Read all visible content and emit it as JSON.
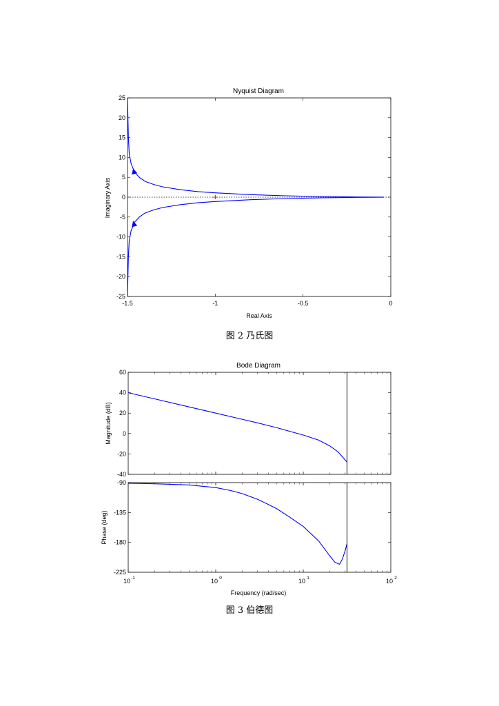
{
  "captions": {
    "fig2": "图 2 乃氏图",
    "fig3": "图 3 伯德图"
  },
  "chart_data": [
    {
      "type": "line",
      "title": "Nyquist Diagram",
      "xlabel": "Real Axis",
      "ylabel": "Imaginary Axis",
      "xlim": [
        -1.5,
        0
      ],
      "ylim": [
        -25,
        25
      ],
      "xticks": [
        "-1.5",
        "-1",
        "-0.5",
        "0"
      ],
      "yticks": [
        "25",
        "20",
        "15",
        "10",
        "5",
        "0",
        "-5",
        "-10",
        "-15",
        "-20",
        "-25"
      ],
      "grid": false,
      "critical_point": [
        -1,
        0
      ],
      "line_color": "#0000ff",
      "marker_color": "#ff0000",
      "series": [
        {
          "x": [
            -0.04,
            -0.2,
            -0.4,
            -0.6,
            -0.8,
            -1.0,
            -1.1,
            -1.2,
            -1.3,
            -1.35,
            -1.4,
            -1.43,
            -1.46,
            -1.48,
            -1.49,
            -1.495,
            -1.5
          ],
          "y": [
            0.02,
            0.06,
            0.18,
            0.35,
            0.65,
            1.1,
            1.4,
            1.9,
            2.6,
            3.2,
            4.0,
            4.9,
            6.3,
            8.5,
            11,
            15,
            25
          ]
        },
        {
          "x": [
            -0.04,
            -0.2,
            -0.4,
            -0.6,
            -0.8,
            -1.0,
            -1.1,
            -1.2,
            -1.3,
            -1.35,
            -1.4,
            -1.43,
            -1.46,
            -1.48,
            -1.49,
            -1.495,
            -1.5
          ],
          "y": [
            -0.02,
            -0.06,
            -0.18,
            -0.35,
            -0.65,
            -1.1,
            -1.4,
            -1.9,
            -2.6,
            -3.2,
            -4.0,
            -4.9,
            -6.3,
            -8.5,
            -11,
            -15,
            -25
          ]
        }
      ],
      "arrows": [
        {
          "x": -1.46,
          "y": 6.2,
          "direction": "up"
        },
        {
          "x": -1.46,
          "y": -7.0,
          "direction": "up"
        }
      ]
    },
    {
      "type": "line",
      "title": "Bode Diagram",
      "xlabel": "Frequency  (rad/sec)",
      "xscale": "log",
      "xlim": [
        0.1,
        100
      ],
      "xticks": [
        {
          "base": "10",
          "exp": "-1"
        },
        {
          "base": "10",
          "exp": "0"
        },
        {
          "base": "10",
          "exp": "1"
        },
        {
          "base": "10",
          "exp": "2"
        }
      ],
      "line_color": "#0000ff",
      "cutoff_frequency": 31.6,
      "panels": [
        {
          "ylabel": "Magnitude (dB)",
          "ylim": [
            -40,
            60
          ],
          "yticks": [
            "60",
            "40",
            "20",
            "0",
            "-20",
            "-40"
          ],
          "x": [
            0.1,
            0.2,
            0.5,
            1,
            2,
            3,
            5,
            8,
            10,
            15,
            20,
            25,
            31.6
          ],
          "y": [
            40,
            34,
            26,
            20,
            14,
            10.5,
            5.7,
            0.8,
            -1.5,
            -6.5,
            -12,
            -18,
            -28
          ]
        },
        {
          "ylabel": "Phase (deg)",
          "ylim": [
            -225,
            -90
          ],
          "yticks": [
            "-90",
            "-135",
            "-180",
            "-225"
          ],
          "x": [
            0.1,
            0.2,
            0.5,
            1,
            1.5,
            2,
            3,
            4,
            5,
            7,
            10,
            15,
            20,
            23,
            26,
            28,
            30,
            31.6
          ],
          "y": [
            -91,
            -91.8,
            -93.5,
            -97.5,
            -102,
            -106.5,
            -115,
            -123,
            -129.5,
            -142,
            -156,
            -178,
            -200,
            -210,
            -213,
            -205,
            -193,
            -182
          ]
        }
      ]
    }
  ]
}
